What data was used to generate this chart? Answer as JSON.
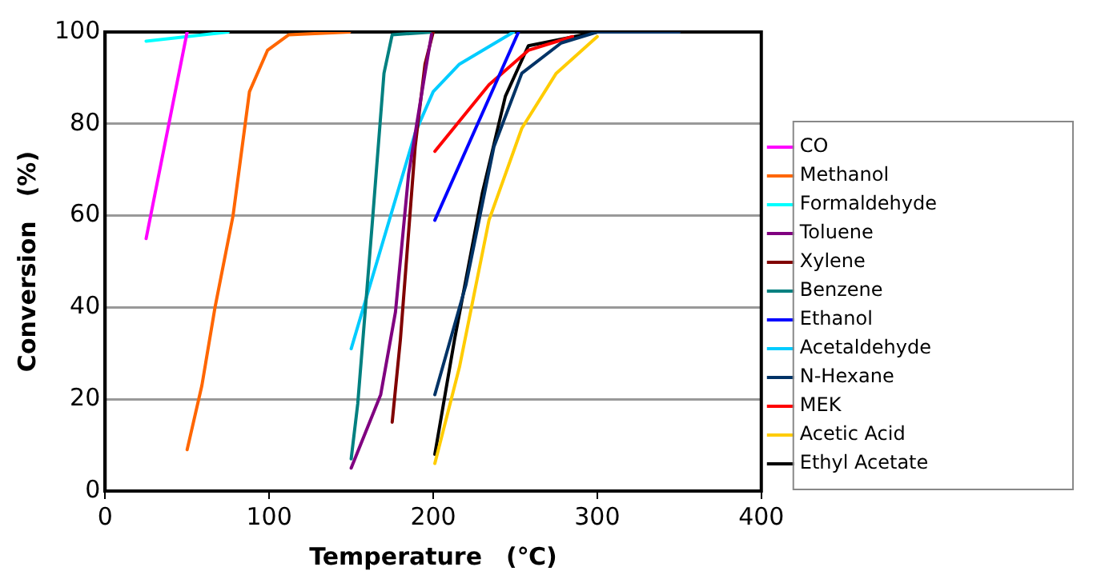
{
  "chart_data": {
    "type": "line",
    "xlabel": "Temperature　(℃)",
    "ylabel": "Conversion　(%)",
    "xlim": [
      0,
      400
    ],
    "xticks": [
      0,
      100,
      200,
      300,
      400
    ],
    "ylim": [
      0,
      100
    ],
    "yticks": [
      0,
      20,
      40,
      60,
      80,
      100
    ],
    "grid": "y",
    "legend": "right",
    "marker": "none",
    "line_style": "solid",
    "series": [
      {
        "name": "CO",
        "color": "#ff00ff",
        "x": [
          25,
          50
        ],
        "values": [
          55,
          100
        ]
      },
      {
        "name": "Methanol",
        "color": "#ff6600",
        "x": [
          50,
          59,
          67,
          78,
          88,
          99,
          112,
          149
        ],
        "values": [
          9,
          23,
          40,
          60,
          87,
          96,
          99.4,
          100
        ]
      },
      {
        "name": "Formaldehyde",
        "color": "#00ffff",
        "x": [
          25,
          75
        ],
        "values": [
          98,
          100
        ]
      },
      {
        "name": "Toluene",
        "color": "#800080",
        "x": [
          150,
          168,
          177,
          185,
          195,
          199
        ],
        "values": [
          5,
          21,
          39,
          69,
          91,
          99.5
        ]
      },
      {
        "name": "Xylene",
        "color": "#800000",
        "x": [
          175,
          180,
          189,
          195,
          200
        ],
        "values": [
          15,
          33,
          75,
          93,
          100
        ]
      },
      {
        "name": "Benzene",
        "color": "#008080",
        "x": [
          150,
          154,
          163,
          170,
          175,
          200
        ],
        "values": [
          7,
          19,
          59,
          91,
          99.4,
          100
        ]
      },
      {
        "name": "Ethanol",
        "color": "#0000ff",
        "x": [
          201,
          252
        ],
        "values": [
          59,
          100
        ]
      },
      {
        "name": "Acetaldehyde",
        "color": "#00ccff",
        "x": [
          150,
          189,
          200,
          216,
          249
        ],
        "values": [
          31,
          78,
          87,
          93,
          100
        ]
      },
      {
        "name": "N-Hexane",
        "color": "#003366",
        "x": [
          201,
          220,
          237,
          254,
          278,
          300,
          350
        ],
        "values": [
          21,
          45,
          75,
          91,
          97.6,
          100,
          100
        ]
      },
      {
        "name": "MEK",
        "color": "#ff0000",
        "x": [
          201,
          234,
          258,
          285
        ],
        "values": [
          74,
          88.5,
          96,
          99
        ]
      },
      {
        "name": "Acetic Acid",
        "color": "#ffcc00",
        "x": [
          201,
          216,
          234,
          254,
          275,
          300
        ],
        "values": [
          6,
          27,
          59,
          79,
          91,
          99
        ]
      },
      {
        "name": "Ethyl Acetate",
        "color": "#000000",
        "x": [
          201,
          213,
          230,
          244,
          258,
          300,
          320
        ],
        "values": [
          8,
          33,
          65,
          86,
          97,
          100,
          100
        ]
      }
    ]
  }
}
